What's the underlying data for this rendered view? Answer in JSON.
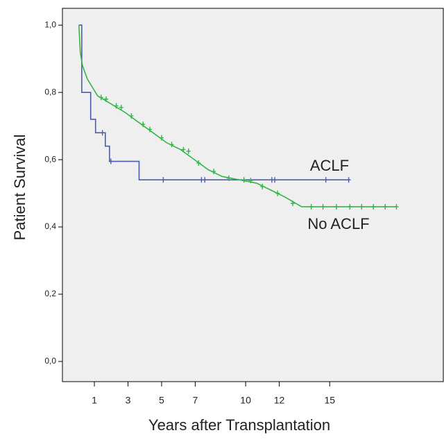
{
  "chart_data": {
    "type": "line",
    "y_label": "Patient Survival",
    "x_label": "Years after Transplantation",
    "xlim": [
      -0.9,
      21.8
    ],
    "ylim": [
      -0.06,
      1.05
    ],
    "xticks": [
      1,
      3,
      5,
      7,
      10,
      12,
      15
    ],
    "yticks": [
      {
        "value": 0,
        "label": "0,0"
      },
      {
        "value": 0.2,
        "label": "0,2"
      },
      {
        "value": 0.4,
        "label": "0,4"
      },
      {
        "value": 0.6,
        "label": "0,6"
      },
      {
        "value": 0.8,
        "label": "0,8"
      },
      {
        "value": 1,
        "label": "1,0"
      }
    ],
    "background": "#efefef",
    "series": [
      {
        "name": "ACLF",
        "color": "#4a5cb0",
        "drawstyle": "steps-post",
        "x": [
          0.08,
          0.25,
          0.78,
          1.07,
          1.65,
          1.9,
          3.66,
          16.13
        ],
        "values": [
          1.0,
          0.8,
          0.72,
          0.68,
          0.64,
          0.595,
          0.54,
          0.54
        ],
        "censored": {
          "x": [
            1.48,
            1.98,
            5.1,
            7.37,
            7.57,
            11.56,
            11.73,
            14.77,
            16.13
          ],
          "values": [
            0.68,
            0.595,
            0.54,
            0.54,
            0.54,
            0.54,
            0.54,
            0.54,
            0.54
          ]
        }
      },
      {
        "name": "No ACLF",
        "color": "#33b54a",
        "drawstyle": "line",
        "x": [
          0.08,
          0.16,
          0.29,
          0.58,
          1.19,
          2.02,
          2.84,
          3.66,
          4.49,
          5.31,
          6.13,
          6.95,
          7.78,
          8.6,
          9.63,
          10.66,
          11.48,
          12.3,
          13.33,
          18.97
        ],
        "values": [
          1.0,
          0.92,
          0.88,
          0.84,
          0.79,
          0.765,
          0.74,
          0.71,
          0.68,
          0.65,
          0.63,
          0.6,
          0.57,
          0.55,
          0.54,
          0.53,
          0.51,
          0.49,
          0.46,
          0.46
        ],
        "censored": {
          "x": [
            1.4,
            1.7,
            2.3,
            2.6,
            3.2,
            3.9,
            4.3,
            5.0,
            5.6,
            6.3,
            6.6,
            7.2,
            8.1,
            9.0,
            9.9,
            10.3,
            11.0,
            11.9,
            12.8,
            13.9,
            14.6,
            15.4,
            16.2,
            16.9,
            17.6,
            18.3,
            18.97
          ],
          "values": [
            0.785,
            0.78,
            0.76,
            0.755,
            0.73,
            0.705,
            0.69,
            0.665,
            0.645,
            0.63,
            0.625,
            0.59,
            0.565,
            0.545,
            0.54,
            0.538,
            0.52,
            0.5,
            0.47,
            0.46,
            0.46,
            0.46,
            0.46,
            0.46,
            0.46,
            0.46,
            0.46
          ]
        }
      }
    ],
    "annotations": [
      "ACLF",
      "No ACLF"
    ]
  }
}
